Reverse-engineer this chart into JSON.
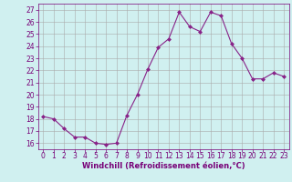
{
  "x": [
    0,
    1,
    2,
    3,
    4,
    5,
    6,
    7,
    8,
    9,
    10,
    11,
    12,
    13,
    14,
    15,
    16,
    17,
    18,
    19,
    20,
    21,
    22,
    23
  ],
  "y": [
    18.2,
    18.0,
    17.2,
    16.5,
    16.5,
    16.0,
    15.9,
    16.0,
    18.3,
    20.0,
    22.1,
    23.9,
    24.6,
    26.8,
    25.6,
    25.2,
    26.8,
    26.5,
    24.2,
    23.0,
    21.3,
    21.3,
    21.8,
    21.5
  ],
  "line_color": "#882288",
  "marker": "D",
  "marker_size": 2,
  "bg_color": "#d0f0f0",
  "grid_color": "#aaaaaa",
  "xlabel": "Windchill (Refroidissement éolien,°C)",
  "xlim": [
    -0.5,
    23.5
  ],
  "ylim": [
    15.5,
    27.5
  ],
  "yticks": [
    16,
    17,
    18,
    19,
    20,
    21,
    22,
    23,
    24,
    25,
    26,
    27
  ],
  "xticks": [
    0,
    1,
    2,
    3,
    4,
    5,
    6,
    7,
    8,
    9,
    10,
    11,
    12,
    13,
    14,
    15,
    16,
    17,
    18,
    19,
    20,
    21,
    22,
    23
  ],
  "font_color": "#770077",
  "label_fontsize": 6.0,
  "tick_fontsize": 5.5
}
